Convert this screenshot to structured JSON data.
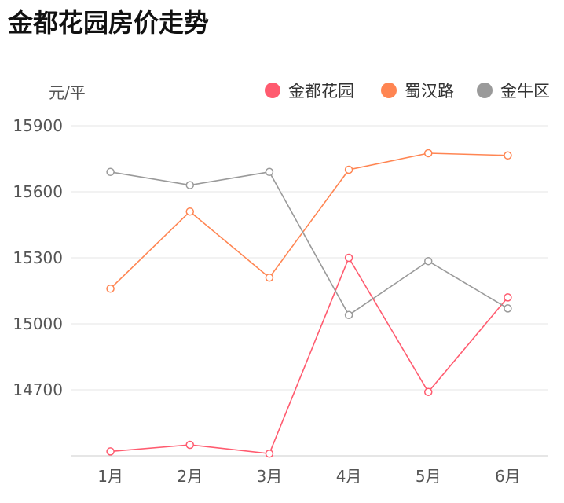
{
  "chart_data": {
    "type": "line",
    "title": "金都花园房价走势",
    "ylabel": "元/平",
    "xlabel": "",
    "categories": [
      "1月",
      "2月",
      "3月",
      "4月",
      "5月",
      "6月"
    ],
    "ylim": [
      14400,
      15900
    ],
    "yticks": [
      14700,
      15000,
      15300,
      15600,
      15900
    ],
    "grid": true,
    "legend_position": "top-right",
    "series": [
      {
        "name": "金都花园",
        "color": "#ff5b6f",
        "values": [
          14420,
          14450,
          14410,
          15300,
          14690,
          15120
        ]
      },
      {
        "name": "蜀汉路",
        "color": "#ff8552",
        "values": [
          15160,
          15510,
          15210,
          15700,
          15775,
          15765
        ]
      },
      {
        "name": "金牛区",
        "color": "#9a9a9a",
        "values": [
          15690,
          15630,
          15690,
          15040,
          15285,
          15070
        ]
      }
    ]
  }
}
